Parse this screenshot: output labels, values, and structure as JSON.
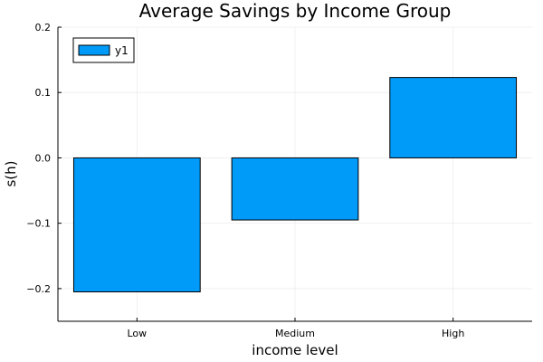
{
  "chart_data": {
    "type": "bar",
    "title": "Average Savings by Income Group",
    "xlabel": "income level",
    "ylabel": "s(h)",
    "categories": [
      "Low",
      "Medium",
      "High"
    ],
    "series": [
      {
        "name": "y1",
        "values": [
          -0.205,
          -0.095,
          0.123
        ]
      }
    ],
    "ylim": [
      -0.25,
      0.2
    ],
    "yticks": [
      -0.2,
      -0.1,
      0.0,
      0.1,
      0.2
    ],
    "ytick_labels": [
      "−0.2",
      "−0.1",
      "0.0",
      "0.1",
      "0.2"
    ],
    "grid": true,
    "legend_position": "top-left",
    "colors": {
      "bar": "#009af9",
      "edge": "#000000"
    }
  }
}
